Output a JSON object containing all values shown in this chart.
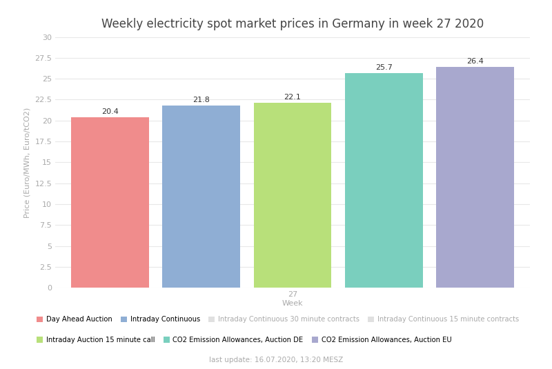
{
  "title": "Weekly electricity spot market prices in Germany in week 27 2020",
  "xlabel": "Week",
  "ylabel": "Price (Euro/MWh, Euro/tCO2)",
  "x_tick_label": "27",
  "categories": [
    "Day Ahead Auction",
    "Intraday Continuous",
    "Intraday Auction 15 minute call",
    "CO2 Emission Allowances, Auction DE",
    "CO2 Emission Allowances, Auction EU"
  ],
  "values": [
    20.4,
    21.8,
    22.1,
    25.7,
    26.4
  ],
  "bar_colors": [
    "#F08C8C",
    "#8FAED4",
    "#B8E07A",
    "#7ACFBE",
    "#A8A8CE"
  ],
  "ylim": [
    0,
    30
  ],
  "yticks": [
    0,
    2.5,
    5,
    7.5,
    10,
    12.5,
    15,
    17.5,
    20,
    22.5,
    25,
    27.5,
    30
  ],
  "bar_width": 0.85,
  "background_color": "#ffffff",
  "grid_color": "#e8e8e8",
  "title_fontsize": 12,
  "label_fontsize": 8,
  "tick_fontsize": 8,
  "value_fontsize": 8,
  "footer_text": "last update: 16.07.2020, 13:20 MESZ",
  "legend_entries": [
    {
      "label": "Day Ahead Auction",
      "color": "#F08C8C",
      "alpha": 1.0
    },
    {
      "label": "Intraday Continuous",
      "color": "#8FAED4",
      "alpha": 1.0
    },
    {
      "label": "Intraday Continuous 30 minute contracts",
      "color": "#c0c0c0",
      "alpha": 0.6
    },
    {
      "label": "Intraday Continuous 15 minute contracts",
      "color": "#b0b0b0",
      "alpha": 0.6
    },
    {
      "label": "Intraday Auction 15 minute call",
      "color": "#B8E07A",
      "alpha": 1.0
    },
    {
      "label": "CO2 Emission Allowances, Auction DE",
      "color": "#7ACFBE",
      "alpha": 1.0
    },
    {
      "label": "CO2 Emission Allowances, Auction EU",
      "color": "#A8A8CE",
      "alpha": 1.0
    }
  ]
}
